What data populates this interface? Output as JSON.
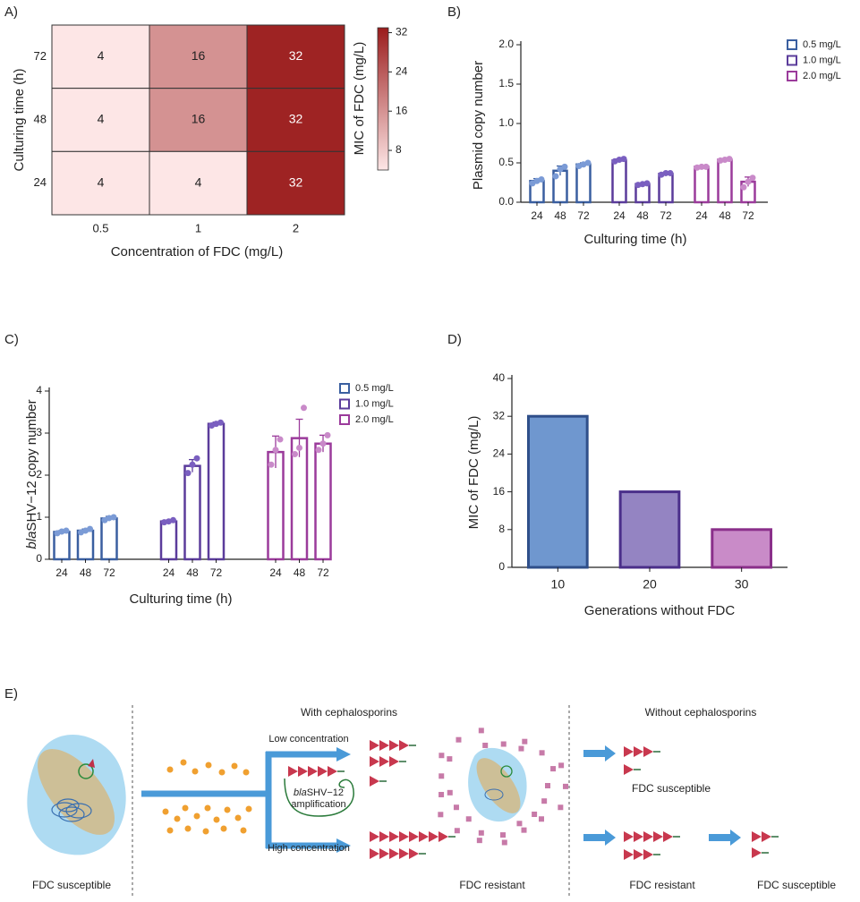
{
  "chart_data": [
    {
      "type": "heatmap",
      "panel_label": "A)",
      "x_label": "Concentration of FDC (mg/L)",
      "y_label": "Culturing time (h)",
      "categories": [
        "0.5",
        "1",
        "2"
      ],
      "y_categories": [
        "72",
        "48",
        "24"
      ],
      "values": [
        [
          4,
          16,
          32
        ],
        [
          4,
          16,
          32
        ],
        [
          4,
          4,
          32
        ]
      ],
      "colorbar_label": "MIC of FDC (mg/L)",
      "clim": [
        4,
        33
      ],
      "colorbar_ticks": [
        8,
        16,
        24,
        32
      ],
      "cmap": [
        "#fde6e6",
        "#9b1c1c"
      ]
    },
    {
      "type": "grouped_bar",
      "panel_label": "B)",
      "x_label": "Culturing time (h)",
      "y_label": "Plasmid copy number",
      "categories": [
        "24",
        "48",
        "72"
      ],
      "ylim": [
        0,
        2.0
      ],
      "yticks": [
        {
          "value": 0,
          "label": "0.0"
        },
        {
          "value": 0.5,
          "label": "0.5"
        },
        {
          "value": 1.0,
          "label": "1.0"
        },
        {
          "value": 1.5,
          "label": "1.5"
        },
        {
          "value": 2.0,
          "label": "2.0"
        }
      ],
      "series": [
        {
          "name": "0.5 mg/L",
          "color": "#3a5fa0",
          "point_color": "#7b9bd6",
          "values": [
            0.27,
            0.4,
            0.48
          ],
          "errors": [
            0.03,
            0.06,
            0.02
          ],
          "points": [
            [
              0.24,
              0.27,
              0.29
            ],
            [
              0.33,
              0.42,
              0.45
            ],
            [
              0.46,
              0.48,
              0.5
            ]
          ]
        },
        {
          "name": "1.0 mg/L",
          "color": "#5b3c9b",
          "point_color": "#7a5fc0",
          "values": [
            0.53,
            0.23,
            0.36
          ],
          "errors": [
            0.02,
            0.01,
            0.01
          ],
          "points": [
            [
              0.52,
              0.54,
              0.55
            ],
            [
              0.22,
              0.23,
              0.24
            ],
            [
              0.35,
              0.37,
              0.37
            ]
          ]
        },
        {
          "name": "2.0 mg/L",
          "color": "#9b3b9b",
          "point_color": "#c98ac9",
          "values": [
            0.45,
            0.54,
            0.26
          ],
          "errors": [
            0.01,
            0.01,
            0.06
          ],
          "points": [
            [
              0.44,
              0.45,
              0.45
            ],
            [
              0.53,
              0.54,
              0.55
            ],
            [
              0.19,
              0.26,
              0.31
            ]
          ]
        }
      ]
    },
    {
      "type": "grouped_bar",
      "panel_label": "C)",
      "x_label": "Culturing time (h)",
      "y_label_italic": "bla",
      "y_label": "SHV−12 copy number",
      "categories": [
        "24",
        "48",
        "72"
      ],
      "ylim": [
        0,
        4
      ],
      "yticks": [
        0,
        1,
        2,
        3,
        4
      ],
      "series": [
        {
          "name": "0.5 mg/L",
          "color": "#3a5fa0",
          "point_color": "#7b9bd6",
          "values": [
            0.65,
            0.68,
            0.97
          ],
          "errors": [
            0.03,
            0.04,
            0.05
          ],
          "points": [
            [
              0.62,
              0.66,
              0.68
            ],
            [
              0.64,
              0.68,
              0.72
            ],
            [
              0.93,
              0.98,
              1.0
            ]
          ]
        },
        {
          "name": "1.0 mg/L",
          "color": "#5b3c9b",
          "point_color": "#7a5fc0",
          "values": [
            0.9,
            2.22,
            3.22
          ],
          "errors": [
            0.03,
            0.15,
            0.04
          ],
          "points": [
            [
              0.88,
              0.9,
              0.93
            ],
            [
              2.05,
              2.25,
              2.4
            ],
            [
              3.18,
              3.22,
              3.25
            ]
          ]
        },
        {
          "name": "2.0 mg/L",
          "color": "#9b3b9b",
          "point_color": "#c98ac9",
          "values": [
            2.55,
            2.88,
            2.75
          ],
          "errors": [
            0.38,
            0.45,
            0.2
          ],
          "points": [
            [
              2.25,
              2.6,
              2.85
            ],
            [
              2.5,
              2.65,
              3.6
            ],
            [
              2.6,
              2.75,
              2.95
            ]
          ]
        }
      ]
    },
    {
      "type": "bar",
      "panel_label": "D)",
      "x_label": "Generations without FDC",
      "y_label": "MIC of FDC (mg/L)",
      "categories": [
        "10",
        "20",
        "30"
      ],
      "values": [
        32,
        16,
        8
      ],
      "colors": [
        "#6f97cf",
        "#9484c2",
        "#c98bc8"
      ],
      "edge_colors": [
        "#2f4f8a",
        "#4b2f8a",
        "#8a2f8a"
      ],
      "ylim": [
        0,
        40
      ],
      "yticks": [
        0,
        8,
        16,
        24,
        32,
        40
      ]
    }
  ],
  "diagram": {
    "panel_label": "E)",
    "with_title": "With cephalosporins",
    "without_title": "Without cephalosporins",
    "low_concentration": "Low concentration",
    "high_concentration": "High concentration",
    "amplification_italic": "bla",
    "amplification": "SHV−12",
    "amplification_line2": "amplification",
    "labels": [
      "FDC susceptible",
      "FDC resistant",
      "FDC susceptible",
      "FDC resistant",
      "FDC susceptible"
    ]
  }
}
